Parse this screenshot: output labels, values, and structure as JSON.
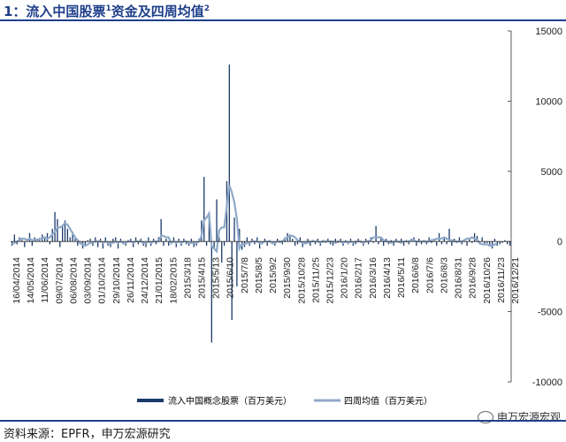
{
  "header": {
    "title_prefix": "1：流入中国股票",
    "title_sup1": "1",
    "title_mid": "资金及四周均值",
    "title_sup2": "2"
  },
  "footer": {
    "source": "资料来源：EPFR，申万宏源研究",
    "watermark": "申万宏源宏观",
    "watermark_icon": "wechat-icon"
  },
  "colors": {
    "bar": "#1b3a6b",
    "line": "#8fa9c9",
    "accent": "#1f3f8a"
  },
  "chart_data": {
    "type": "bar",
    "ylim": [
      -10000,
      15000
    ],
    "yticks": [
      15000,
      10000,
      5000,
      0,
      -5000,
      -10000
    ],
    "grid": false,
    "legend_position": "bottom",
    "x_tick_labels": [
      "16/04/2014",
      "14/05/2014",
      "11/06/2014",
      "09/07/2014",
      "06/08/2014",
      "03/09/2014",
      "01/10/2014",
      "29/10/2014",
      "26/11/2014",
      "24/12/2014",
      "21/01/2015",
      "18/02/2015",
      "2015/3/18",
      "2015/4/15",
      "2015/5/13",
      "2015/6/10",
      "2015/7/8",
      "2015/8/5",
      "2015/9/2",
      "2015/9/30",
      "2015/10/28",
      "2015/11/25",
      "2015/12/23",
      "2016/1/20",
      "2016/2/17",
      "2016/3/16",
      "2016/4/13",
      "2016/5/11",
      "2016/6/8",
      "2016/7/6",
      "2016/8/3",
      "2016/8/31",
      "2016/9/28",
      "2016/10/26",
      "2016/11/23",
      "2016/12/21"
    ],
    "series": [
      {
        "name": "流入中国概念股票（百万美元）",
        "kind": "bar",
        "values": [
          -300,
          500,
          -200,
          300,
          100,
          -400,
          200,
          600,
          -300,
          300,
          200,
          100,
          500,
          300,
          600,
          -200,
          900,
          2100,
          1600,
          -400,
          1200,
          1500,
          900,
          300,
          700,
          200,
          -300,
          -200,
          -500,
          -200,
          100,
          200,
          -300,
          300,
          -400,
          200,
          -500,
          300,
          -300,
          -400,
          200,
          300,
          -500,
          200,
          -200,
          -300,
          100,
          200,
          -400,
          300,
          -200,
          200,
          -300,
          -400,
          300,
          -300,
          200,
          -200,
          300,
          1600,
          -300,
          200,
          -300,
          -200,
          300,
          -400,
          200,
          -300,
          200,
          -200,
          -300,
          200,
          -400,
          -300,
          200,
          1500,
          4600,
          -300,
          1800,
          -7200,
          -500,
          3000,
          300,
          -1500,
          -300,
          4300,
          12600,
          -5600,
          1700,
          -3200,
          900,
          -600,
          -400,
          300,
          -300,
          200,
          -200,
          300,
          -500,
          -200,
          200,
          -300,
          100,
          -200,
          -300,
          200,
          -100,
          -200,
          300,
          600,
          500,
          200,
          -300,
          -200,
          300,
          -400,
          -200,
          200,
          -300,
          100,
          -200,
          200,
          -300,
          100,
          -100,
          200,
          -200,
          -300,
          200,
          -100,
          200,
          -300,
          100,
          -200,
          200,
          -300,
          -200,
          200,
          -100,
          -300,
          200,
          -200,
          300,
          -100,
          1100,
          -200,
          300,
          -300,
          200,
          -200,
          100,
          -300,
          200,
          -100,
          200,
          -300,
          100,
          -200,
          200,
          300,
          -300,
          200,
          -200,
          100,
          -200,
          300,
          -100,
          200,
          -300,
          600,
          -200,
          300,
          -200,
          900,
          -300,
          200,
          -100,
          300,
          -200,
          100,
          -300,
          200,
          -100,
          600,
          400,
          -200,
          300,
          -200,
          -100,
          -300,
          -500,
          200,
          -300,
          -200,
          -100,
          100,
          -200,
          -300
        ]
      },
      {
        "name": "四周均值（百万美元）",
        "kind": "line",
        "values": [
          -200,
          -100,
          0,
          100,
          200,
          200,
          100,
          200,
          100,
          100,
          100,
          200,
          200,
          300,
          200,
          300,
          500,
          700,
          1000,
          1000,
          1100,
          1300,
          1200,
          900,
          600,
          300,
          100,
          -100,
          -200,
          -300,
          -200,
          -100,
          -100,
          0,
          0,
          0,
          -100,
          0,
          -100,
          -100,
          -100,
          0,
          -100,
          0,
          -100,
          -100,
          0,
          0,
          -100,
          0,
          0,
          0,
          -100,
          -100,
          0,
          -100,
          0,
          0,
          0,
          400,
          400,
          300,
          300,
          -100,
          0,
          -100,
          0,
          -100,
          0,
          0,
          -100,
          -100,
          -100,
          -100,
          0,
          400,
          1500,
          1700,
          2000,
          -300,
          -500,
          -700,
          800,
          1000,
          1000,
          2500,
          4000,
          3500,
          2800,
          1600,
          -500,
          -200,
          -200,
          -100,
          -100,
          0,
          0,
          0,
          -100,
          -100,
          0,
          0,
          0,
          -100,
          -100,
          0,
          0,
          0,
          200,
          300,
          400,
          400,
          300,
          100,
          0,
          -100,
          -100,
          -100,
          0,
          0,
          0,
          0,
          -100,
          0,
          0,
          0,
          0,
          0,
          -100,
          0,
          0,
          -100,
          0,
          -100,
          0,
          -100,
          0,
          0,
          0,
          -100,
          0,
          0,
          100,
          300,
          300,
          300,
          300,
          100,
          0,
          0,
          -100,
          0,
          0,
          0,
          -100,
          0,
          0,
          0,
          100,
          100,
          0,
          0,
          0,
          0,
          0,
          0,
          100,
          100,
          200,
          200,
          200,
          300,
          200,
          100,
          100,
          0,
          0,
          0,
          0,
          100,
          200,
          200,
          300,
          200,
          100,
          -100,
          -200,
          -200,
          -200,
          -300,
          -300,
          -200,
          -200
        ]
      }
    ]
  }
}
